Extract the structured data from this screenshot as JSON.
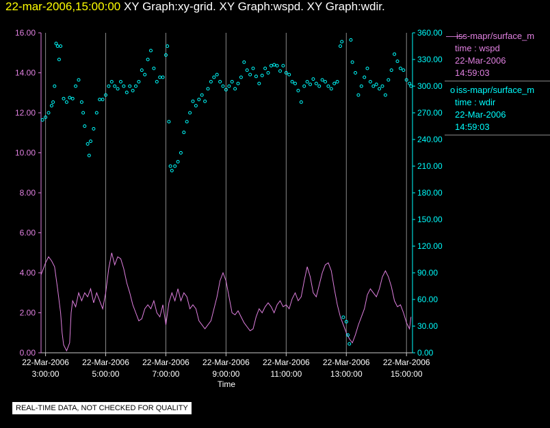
{
  "header": {
    "timestamp": "22-mar-2006,15:00:00",
    "graphs": "XY Graph:xy-grid.  XY Graph:wspd.  XY Graph:wdir."
  },
  "legend": [
    {
      "marker": "line",
      "symbol": "——",
      "name": "iss-mapr/surface_m",
      "label": "time : wspd",
      "date": "22-Mar-2006",
      "time": "14:59:03",
      "color": "#e080e0"
    },
    {
      "marker": "circle",
      "symbol": "o",
      "name": "iss-mapr/surface_m",
      "label": "time : wdir",
      "date": "22-Mar-2006",
      "time": "14:59:03",
      "color": "#00ffff"
    }
  ],
  "footer": {
    "quality_note": "REAL-TIME DATA, NOT CHECKED FOR QUALITY"
  },
  "chart_data": {
    "type": "line",
    "xlabel": "Time",
    "x_range_hours": [
      2.85,
      15.2
    ],
    "x_ticks": [
      {
        "hour": 3,
        "date": "22-Mar-2006",
        "time": "3:00:00"
      },
      {
        "hour": 5,
        "date": "22-Mar-2006",
        "time": "5:00:00"
      },
      {
        "hour": 7,
        "date": "22-Mar-2006",
        "time": "7:00:00"
      },
      {
        "hour": 9,
        "date": "22-Mar-2006",
        "time": "9:00:00"
      },
      {
        "hour": 11,
        "date": "22-Mar-2006",
        "time": "11:00:00"
      },
      {
        "hour": 13,
        "date": "22-Mar-2006",
        "time": "13:00:00"
      },
      {
        "hour": 15,
        "date": "22-Mar-2006",
        "time": "15:00:00"
      }
    ],
    "y_left": {
      "range": [
        0,
        16
      ],
      "ticks": [
        "0.00",
        "2.00",
        "4.00",
        "6.00",
        "8.00",
        "10.00",
        "12.00",
        "14.00",
        "16.00"
      ],
      "color": "#e080e0"
    },
    "y_right": {
      "range": [
        0,
        360
      ],
      "ticks": [
        "0.00",
        "30.00",
        "60.00",
        "90.00",
        "120.00",
        "150.00",
        "180.00",
        "210.00",
        "240.00",
        "270.00",
        "300.00",
        "330.00",
        "360.00"
      ],
      "color": "#00ffff"
    },
    "grid": "vertical lines at x ticks",
    "series": [
      {
        "name": "wspd",
        "axis": "left",
        "style": "line",
        "color": "#e080e0",
        "points": [
          [
            2.85,
            3.9
          ],
          [
            3.0,
            4.5
          ],
          [
            3.1,
            4.8
          ],
          [
            3.2,
            4.6
          ],
          [
            3.3,
            4.3
          ],
          [
            3.4,
            3.2
          ],
          [
            3.5,
            2.0
          ],
          [
            3.55,
            1.0
          ],
          [
            3.6,
            0.4
          ],
          [
            3.7,
            0.1
          ],
          [
            3.8,
            0.5
          ],
          [
            3.85,
            2.0
          ],
          [
            3.9,
            2.6
          ],
          [
            4.0,
            2.3
          ],
          [
            4.1,
            3.0
          ],
          [
            4.2,
            2.6
          ],
          [
            4.3,
            3.0
          ],
          [
            4.4,
            2.8
          ],
          [
            4.5,
            3.2
          ],
          [
            4.6,
            2.5
          ],
          [
            4.7,
            3.0
          ],
          [
            4.8,
            2.6
          ],
          [
            4.9,
            2.2
          ],
          [
            5.0,
            3.0
          ],
          [
            5.1,
            4.2
          ],
          [
            5.2,
            5.0
          ],
          [
            5.3,
            4.4
          ],
          [
            5.4,
            4.8
          ],
          [
            5.5,
            4.7
          ],
          [
            5.6,
            4.2
          ],
          [
            5.7,
            3.5
          ],
          [
            5.8,
            3.0
          ],
          [
            5.9,
            2.4
          ],
          [
            6.0,
            2.0
          ],
          [
            6.1,
            1.6
          ],
          [
            6.2,
            1.7
          ],
          [
            6.3,
            2.2
          ],
          [
            6.4,
            2.4
          ],
          [
            6.5,
            2.2
          ],
          [
            6.6,
            2.6
          ],
          [
            6.7,
            2.0
          ],
          [
            6.8,
            1.8
          ],
          [
            6.9,
            2.4
          ],
          [
            7.0,
            1.4
          ],
          [
            7.1,
            2.5
          ],
          [
            7.2,
            3.0
          ],
          [
            7.3,
            2.6
          ],
          [
            7.4,
            3.2
          ],
          [
            7.5,
            2.6
          ],
          [
            7.6,
            3.0
          ],
          [
            7.7,
            2.8
          ],
          [
            7.8,
            2.2
          ],
          [
            7.9,
            2.4
          ],
          [
            8.0,
            2.2
          ],
          [
            8.1,
            1.6
          ],
          [
            8.2,
            1.4
          ],
          [
            8.3,
            1.2
          ],
          [
            8.4,
            1.4
          ],
          [
            8.5,
            1.6
          ],
          [
            8.6,
            2.2
          ],
          [
            8.7,
            2.8
          ],
          [
            8.8,
            3.6
          ],
          [
            8.9,
            4.0
          ],
          [
            9.0,
            3.6
          ],
          [
            9.1,
            2.8
          ],
          [
            9.2,
            2.0
          ],
          [
            9.3,
            1.9
          ],
          [
            9.4,
            2.1
          ],
          [
            9.5,
            1.8
          ],
          [
            9.6,
            1.5
          ],
          [
            9.7,
            1.3
          ],
          [
            9.8,
            1.1
          ],
          [
            9.9,
            1.2
          ],
          [
            10.0,
            1.8
          ],
          [
            10.1,
            2.2
          ],
          [
            10.2,
            2.0
          ],
          [
            10.3,
            2.3
          ],
          [
            10.4,
            2.5
          ],
          [
            10.5,
            2.3
          ],
          [
            10.6,
            2.0
          ],
          [
            10.7,
            2.4
          ],
          [
            10.8,
            2.6
          ],
          [
            10.9,
            2.3
          ],
          [
            11.0,
            2.4
          ],
          [
            11.1,
            2.2
          ],
          [
            11.2,
            2.7
          ],
          [
            11.3,
            3.0
          ],
          [
            11.4,
            2.6
          ],
          [
            11.5,
            2.8
          ],
          [
            11.6,
            3.6
          ],
          [
            11.7,
            4.3
          ],
          [
            11.8,
            3.8
          ],
          [
            11.9,
            3.0
          ],
          [
            12.0,
            2.8
          ],
          [
            12.1,
            3.4
          ],
          [
            12.2,
            4.0
          ],
          [
            12.3,
            4.4
          ],
          [
            12.4,
            4.5
          ],
          [
            12.5,
            4.1
          ],
          [
            12.6,
            3.2
          ],
          [
            12.7,
            2.4
          ],
          [
            12.8,
            1.8
          ],
          [
            12.9,
            1.4
          ],
          [
            13.0,
            1.0
          ],
          [
            13.1,
            0.7
          ],
          [
            13.2,
            0.5
          ],
          [
            13.3,
            0.9
          ],
          [
            13.4,
            1.4
          ],
          [
            13.5,
            1.8
          ],
          [
            13.6,
            2.2
          ],
          [
            13.7,
            2.9
          ],
          [
            13.8,
            3.2
          ],
          [
            13.9,
            3.0
          ],
          [
            14.0,
            2.8
          ],
          [
            14.1,
            3.2
          ],
          [
            14.2,
            3.8
          ],
          [
            14.3,
            4.1
          ],
          [
            14.4,
            3.8
          ],
          [
            14.5,
            3.3
          ],
          [
            14.6,
            2.6
          ],
          [
            14.7,
            2.3
          ],
          [
            14.8,
            2.4
          ],
          [
            14.9,
            2.0
          ],
          [
            15.0,
            1.5
          ],
          [
            15.1,
            1.2
          ],
          [
            15.15,
            1.8
          ]
        ]
      },
      {
        "name": "wdir",
        "axis": "right",
        "style": "markers",
        "color": "#00ffff",
        "points": [
          [
            2.9,
            262
          ],
          [
            3.0,
            265
          ],
          [
            3.1,
            270
          ],
          [
            3.2,
            278
          ],
          [
            3.25,
            282
          ],
          [
            3.3,
            300
          ],
          [
            3.35,
            348
          ],
          [
            3.4,
            345
          ],
          [
            3.45,
            330
          ],
          [
            3.5,
            345
          ],
          [
            3.6,
            286
          ],
          [
            3.7,
            282
          ],
          [
            3.8,
            287
          ],
          [
            3.9,
            286
          ],
          [
            4.0,
            300
          ],
          [
            4.1,
            307
          ],
          [
            4.2,
            282
          ],
          [
            4.25,
            270
          ],
          [
            4.3,
            255
          ],
          [
            4.4,
            235
          ],
          [
            4.45,
            222
          ],
          [
            4.5,
            238
          ],
          [
            4.6,
            252
          ],
          [
            4.7,
            270
          ],
          [
            4.8,
            285
          ],
          [
            4.9,
            285
          ],
          [
            5.0,
            290
          ],
          [
            5.1,
            300
          ],
          [
            5.2,
            305
          ],
          [
            5.3,
            300
          ],
          [
            5.4,
            297
          ],
          [
            5.5,
            305
          ],
          [
            5.6,
            300
          ],
          [
            5.7,
            293
          ],
          [
            5.8,
            300
          ],
          [
            5.9,
            295
          ],
          [
            6.0,
            300
          ],
          [
            6.1,
            305
          ],
          [
            6.2,
            318
          ],
          [
            6.3,
            313
          ],
          [
            6.4,
            330
          ],
          [
            6.5,
            340
          ],
          [
            6.6,
            320
          ],
          [
            6.7,
            305
          ],
          [
            6.8,
            310
          ],
          [
            6.9,
            310
          ],
          [
            7.0,
            335
          ],
          [
            7.05,
            345
          ],
          [
            7.1,
            260
          ],
          [
            7.15,
            210
          ],
          [
            7.2,
            205
          ],
          [
            7.3,
            210
          ],
          [
            7.4,
            215
          ],
          [
            7.5,
            225
          ],
          [
            7.6,
            248
          ],
          [
            7.7,
            260
          ],
          [
            7.8,
            270
          ],
          [
            7.9,
            283
          ],
          [
            8.0,
            278
          ],
          [
            8.1,
            285
          ],
          [
            8.2,
            290
          ],
          [
            8.3,
            283
          ],
          [
            8.4,
            297
          ],
          [
            8.5,
            305
          ],
          [
            8.6,
            310
          ],
          [
            8.7,
            313
          ],
          [
            8.8,
            305
          ],
          [
            8.9,
            300
          ],
          [
            9.0,
            296
          ],
          [
            9.1,
            300
          ],
          [
            9.2,
            305
          ],
          [
            9.3,
            297
          ],
          [
            9.4,
            303
          ],
          [
            9.5,
            310
          ],
          [
            9.6,
            327
          ],
          [
            9.7,
            318
          ],
          [
            9.8,
            313
          ],
          [
            9.9,
            320
          ],
          [
            10.0,
            311
          ],
          [
            10.1,
            303
          ],
          [
            10.2,
            312
          ],
          [
            10.3,
            320
          ],
          [
            10.4,
            315
          ],
          [
            10.5,
            323
          ],
          [
            10.6,
            324
          ],
          [
            10.7,
            323
          ],
          [
            10.8,
            317
          ],
          [
            10.9,
            323
          ],
          [
            11.0,
            315
          ],
          [
            11.1,
            313
          ],
          [
            11.2,
            305
          ],
          [
            11.3,
            303
          ],
          [
            11.4,
            295
          ],
          [
            11.5,
            282
          ],
          [
            11.6,
            300
          ],
          [
            11.7,
            305
          ],
          [
            11.8,
            302
          ],
          [
            11.9,
            308
          ],
          [
            12.0,
            303
          ],
          [
            12.1,
            300
          ],
          [
            12.2,
            307
          ],
          [
            12.3,
            305
          ],
          [
            12.4,
            300
          ],
          [
            12.5,
            297
          ],
          [
            12.6,
            303
          ],
          [
            12.7,
            305
          ],
          [
            12.8,
            345
          ],
          [
            12.85,
            350
          ],
          [
            12.9,
            40
          ],
          [
            13.0,
            35
          ],
          [
            13.05,
            20
          ],
          [
            13.1,
            10
          ],
          [
            13.15,
            352
          ],
          [
            13.2,
            327
          ],
          [
            13.3,
            315
          ],
          [
            13.4,
            290
          ],
          [
            13.5,
            300
          ],
          [
            13.6,
            310
          ],
          [
            13.7,
            320
          ],
          [
            13.8,
            305
          ],
          [
            13.9,
            300
          ],
          [
            14.0,
            302
          ],
          [
            14.1,
            297
          ],
          [
            14.2,
            300
          ],
          [
            14.3,
            290
          ],
          [
            14.4,
            307
          ],
          [
            14.5,
            318
          ],
          [
            14.6,
            336
          ],
          [
            14.7,
            328
          ],
          [
            14.8,
            320
          ],
          [
            14.9,
            318
          ],
          [
            15.0,
            307
          ],
          [
            15.1,
            303
          ],
          [
            15.15,
            300
          ]
        ]
      }
    ]
  }
}
